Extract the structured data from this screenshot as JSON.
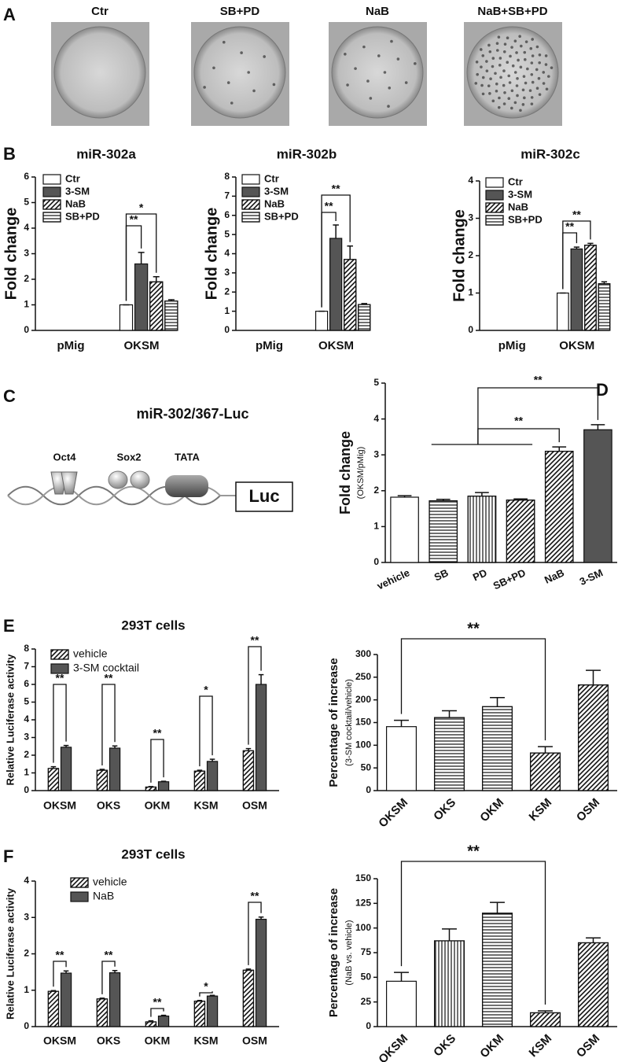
{
  "panel_labels": [
    "A",
    "B",
    "C",
    "D",
    "E",
    "F"
  ],
  "photos": {
    "labels": [
      "Ctr",
      "SB+PD",
      "NaB",
      "NaB+SB+PD"
    ]
  },
  "diagram": {
    "title": "miR-302/367-Luc",
    "labels": [
      "Oct4",
      "Sox2",
      "TATA"
    ],
    "reporter": "Luc"
  },
  "chart_data": [
    {
      "type": "bar",
      "title": "miR-302a",
      "ylabel": "Fold change",
      "categories": [
        "pMig",
        "OKSM"
      ],
      "series": [
        {
          "name": "Ctr",
          "color": "#ffffff",
          "pattern": "open",
          "values": [
            null,
            1.0
          ],
          "errors": [
            null,
            0
          ]
        },
        {
          "name": "3-SM",
          "color": "#555555",
          "pattern": "solid",
          "values": [
            null,
            2.6
          ],
          "errors": [
            null,
            0.45
          ]
        },
        {
          "name": "NaB",
          "color": "#ffffff",
          "pattern": "diagonal",
          "values": [
            null,
            1.9
          ],
          "errors": [
            null,
            0.2
          ]
        },
        {
          "name": "SB+PD",
          "color": "#ffffff",
          "pattern": "horizontal",
          "values": [
            null,
            1.15
          ],
          "errors": [
            null,
            0.05
          ]
        }
      ],
      "ylim": [
        0,
        6
      ],
      "yticks": [
        0,
        1,
        2,
        3,
        4,
        5,
        6
      ],
      "legend": "upper left",
      "annotations": [
        "**",
        "*"
      ]
    },
    {
      "type": "bar",
      "title": "miR-302b",
      "ylabel": "Fold change",
      "categories": [
        "pMig",
        "OKSM"
      ],
      "series": [
        {
          "name": "Ctr",
          "color": "#ffffff",
          "pattern": "open",
          "values": [
            null,
            1.0
          ],
          "errors": [
            null,
            0
          ]
        },
        {
          "name": "3-SM",
          "color": "#555555",
          "pattern": "solid",
          "values": [
            null,
            4.8
          ],
          "errors": [
            null,
            0.7
          ]
        },
        {
          "name": "NaB",
          "color": "#ffffff",
          "pattern": "diagonal",
          "values": [
            null,
            3.7
          ],
          "errors": [
            null,
            0.7
          ]
        },
        {
          "name": "SB+PD",
          "color": "#ffffff",
          "pattern": "horizontal",
          "values": [
            null,
            1.35
          ],
          "errors": [
            null,
            0.05
          ]
        }
      ],
      "ylim": [
        0,
        8
      ],
      "yticks": [
        0,
        1,
        2,
        3,
        4,
        5,
        6,
        7,
        8
      ],
      "legend": "upper left",
      "annotations": [
        "**",
        "**"
      ]
    },
    {
      "type": "bar",
      "title": "miR-302c",
      "ylabel": "Fold change",
      "categories": [
        "pMig",
        "OKSM"
      ],
      "series": [
        {
          "name": "Ctr",
          "color": "#ffffff",
          "pattern": "open",
          "values": [
            null,
            1.0
          ],
          "errors": [
            null,
            0
          ]
        },
        {
          "name": "3-SM",
          "color": "#555555",
          "pattern": "solid",
          "values": [
            null,
            2.18
          ],
          "errors": [
            null,
            0.05
          ]
        },
        {
          "name": "NaB",
          "color": "#ffffff",
          "pattern": "diagonal",
          "values": [
            null,
            2.28
          ],
          "errors": [
            null,
            0.05
          ]
        },
        {
          "name": "SB+PD",
          "color": "#ffffff",
          "pattern": "horizontal",
          "values": [
            null,
            1.25
          ],
          "errors": [
            null,
            0.05
          ]
        }
      ],
      "ylim": [
        0,
        4
      ],
      "yticks": [
        0,
        1,
        2,
        3,
        4
      ],
      "legend": "upper left",
      "annotations": [
        "**",
        "**"
      ]
    },
    {
      "type": "bar",
      "ylabel": "Fold change",
      "ylabel_note": "(OKSM/pMig)",
      "categories": [
        "vehicle",
        "SB",
        "PD",
        "SB+PD",
        "NaB",
        "3-SM"
      ],
      "values": [
        1.82,
        1.72,
        1.85,
        1.74,
        3.1,
        3.7
      ],
      "errors": [
        0.04,
        0.04,
        0.1,
        0.03,
        0.12,
        0.14
      ],
      "colors": [
        "#ffffff",
        "#ffffff",
        "#ffffff",
        "#ffffff",
        "#ffffff",
        "#555555"
      ],
      "patterns": [
        "open",
        "horizontal",
        "vertical",
        "diagonal",
        "diagonal",
        "solid"
      ],
      "ylim": [
        0,
        5
      ],
      "yticks": [
        0,
        1,
        2,
        3,
        4,
        5
      ],
      "annotations": [
        "**",
        "**"
      ]
    },
    {
      "type": "bar",
      "title": "293T cells",
      "ylabel": "Relative Luciferase activity",
      "categories": [
        "OKSM",
        "OKS",
        "OKM",
        "KSM",
        "OSM"
      ],
      "series": [
        {
          "name": "vehicle",
          "color": "#ffffff",
          "pattern": "diagonal",
          "values": [
            1.25,
            1.15,
            0.2,
            1.1,
            2.25
          ],
          "errors": [
            0.1,
            0.05,
            0.03,
            0.05,
            0.12
          ]
        },
        {
          "name": "3-SM cocktail",
          "color": "#555555",
          "pattern": "solid",
          "values": [
            2.45,
            2.4,
            0.5,
            1.65,
            6.0
          ],
          "errors": [
            0.1,
            0.12,
            0.03,
            0.12,
            0.55
          ]
        }
      ],
      "ylim": [
        0,
        8
      ],
      "yticks": [
        0,
        1,
        2,
        3,
        4,
        5,
        6,
        7,
        8
      ],
      "legend": "upper left",
      "annotations": [
        "**",
        "**",
        "**",
        "*",
        "**"
      ]
    },
    {
      "type": "bar",
      "ylabel": "Percentage of increase",
      "ylabel_note": "(3-SM cocktail/vehicle)",
      "categories": [
        "OKSM",
        "OKS",
        "OKM",
        "KSM",
        "OSM"
      ],
      "values": [
        141,
        161,
        185,
        83,
        233
      ],
      "errors": [
        14,
        15,
        20,
        14,
        32
      ],
      "colors": [
        "#ffffff",
        "#ffffff",
        "#ffffff",
        "#ffffff",
        "#ffffff"
      ],
      "patterns": [
        "open",
        "horizontal",
        "horizontal",
        "diagonal",
        "diagonal"
      ],
      "ylim": [
        0,
        300
      ],
      "yticks": [
        0,
        50,
        100,
        150,
        200,
        250,
        300
      ],
      "annotations": [
        "**"
      ]
    },
    {
      "type": "bar",
      "title": "293T cells",
      "ylabel": "Relative Luciferase activity",
      "categories": [
        "OKSM",
        "OKS",
        "OKM",
        "KSM",
        "OSM"
      ],
      "series": [
        {
          "name": "vehicle",
          "color": "#ffffff",
          "pattern": "diagonal",
          "values": [
            0.97,
            0.76,
            0.13,
            0.7,
            1.55
          ],
          "errors": [
            0.02,
            0.02,
            0.03,
            0.02,
            0.03
          ]
        },
        {
          "name": "NaB",
          "color": "#555555",
          "pattern": "solid",
          "values": [
            1.47,
            1.48,
            0.29,
            0.84,
            2.95
          ],
          "errors": [
            0.06,
            0.06,
            0.02,
            0.02,
            0.06
          ]
        }
      ],
      "ylim": [
        0,
        4
      ],
      "yticks": [
        0,
        1,
        2,
        3,
        4
      ],
      "legend": "upper left",
      "annotations": [
        "**",
        "**",
        "**",
        "*",
        "**"
      ]
    },
    {
      "type": "bar",
      "ylabel": "Percentage of increase",
      "ylabel_note": "(NaB vs. vehicle)",
      "categories": [
        "OKSM",
        "OKS",
        "OKM",
        "KSM",
        "OSM"
      ],
      "values": [
        46,
        87,
        115,
        14,
        85
      ],
      "errors": [
        9,
        12,
        11,
        2,
        5
      ],
      "colors": [
        "#ffffff",
        "#ffffff",
        "#ffffff",
        "#ffffff",
        "#ffffff"
      ],
      "patterns": [
        "open",
        "vertical",
        "horizontal",
        "diagonal",
        "diagonal"
      ],
      "ylim": [
        0,
        150
      ],
      "yticks": [
        0,
        25,
        50,
        75,
        100,
        125,
        150
      ],
      "annotations": [
        "**"
      ]
    }
  ]
}
